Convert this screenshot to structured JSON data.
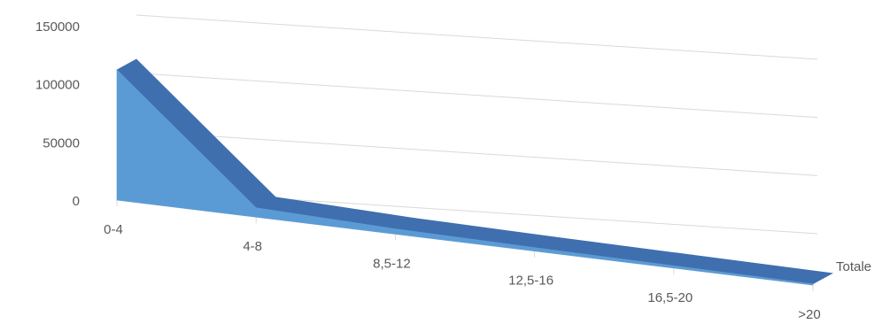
{
  "chart_data": {
    "type": "area",
    "style": "3d",
    "categories": [
      "0-4",
      "4-8",
      "8,5-12",
      "12,5-16",
      "16,5-20",
      ">20"
    ],
    "series": [
      {
        "name": "Totale",
        "values": [
          112000,
          8000,
          4500,
          3000,
          2000,
          1000
        ]
      }
    ],
    "ylim": [
      0,
      150000
    ],
    "yticks": [
      0,
      50000,
      100000,
      150000
    ],
    "ytick_labels": [
      "0",
      "50000",
      "100000",
      "150000"
    ],
    "grid": true,
    "legend": "none",
    "colors": {
      "front": "#5b9bd5",
      "top": "#3f6fae",
      "grid": "#d9d9d9",
      "text": "#595959"
    }
  }
}
